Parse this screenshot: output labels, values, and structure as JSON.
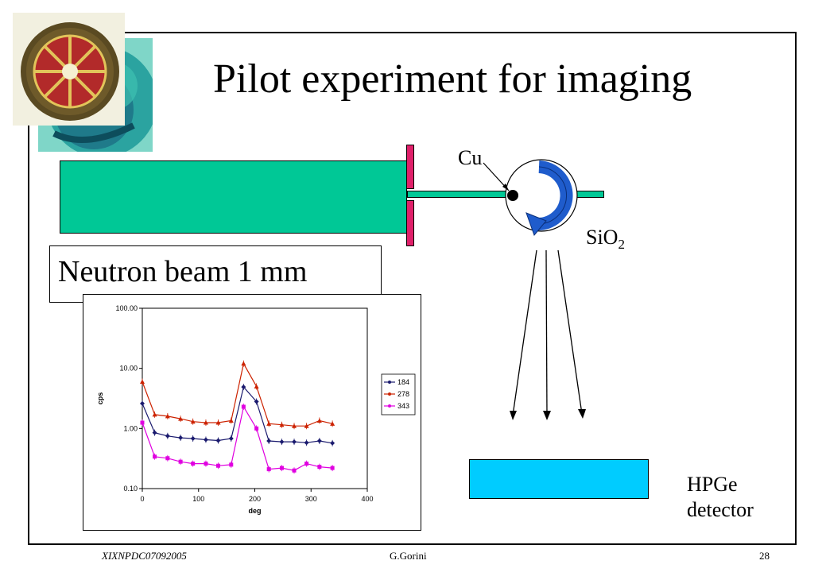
{
  "slide": {
    "title": "Pilot experiment for imaging",
    "labels": {
      "cu": "Cu",
      "sio2_main": "SiO",
      "sio2_sub": "2",
      "neutron_beam": "Neutron beam 1 mm",
      "detector_line1": "HPGe",
      "detector_line2": "detector"
    },
    "footer": {
      "left": "XIXNPDC07092005",
      "center": "G.Gorini",
      "right": "28"
    },
    "colors": {
      "beam": "#00c896",
      "collimator": "#e0206a",
      "sample_arrow": "#1f5ccc",
      "detector": "#00ccff"
    }
  },
  "chart_data": {
    "type": "line",
    "xlabel": "deg",
    "ylabel": "cps",
    "xlim": [
      0,
      400
    ],
    "ylim": [
      0.1,
      100
    ],
    "yscale": "log",
    "x_ticks": [
      "0",
      "100",
      "200",
      "300",
      "400"
    ],
    "y_ticks": [
      "0.10",
      "1.00",
      "10.00",
      "100.00"
    ],
    "legend_position": "right",
    "series": [
      {
        "name": "184",
        "color": "#1a1a6e",
        "marker": "diamond",
        "x": [
          0,
          22,
          45,
          68,
          90,
          113,
          135,
          158,
          180,
          203,
          225,
          248,
          270,
          292,
          315,
          338
        ],
        "y": [
          2.6,
          0.85,
          0.75,
          0.7,
          0.68,
          0.65,
          0.63,
          0.68,
          4.9,
          2.8,
          0.62,
          0.6,
          0.6,
          0.58,
          0.62,
          0.57
        ]
      },
      {
        "name": "278",
        "color": "#cc2200",
        "marker": "triangle",
        "x": [
          0,
          22,
          45,
          68,
          90,
          113,
          135,
          158,
          180,
          203,
          225,
          248,
          270,
          292,
          315,
          338
        ],
        "y": [
          6.0,
          1.7,
          1.6,
          1.45,
          1.3,
          1.25,
          1.25,
          1.35,
          12.0,
          5.0,
          1.2,
          1.15,
          1.1,
          1.1,
          1.35,
          1.2
        ]
      },
      {
        "name": "343",
        "color": "#e000e0",
        "marker": "square",
        "x": [
          0,
          22,
          45,
          68,
          90,
          113,
          135,
          158,
          180,
          203,
          225,
          248,
          270,
          292,
          315,
          338
        ],
        "y": [
          1.25,
          0.34,
          0.32,
          0.28,
          0.26,
          0.26,
          0.24,
          0.25,
          2.3,
          1.0,
          0.21,
          0.22,
          0.2,
          0.26,
          0.23,
          0.22
        ]
      }
    ]
  }
}
